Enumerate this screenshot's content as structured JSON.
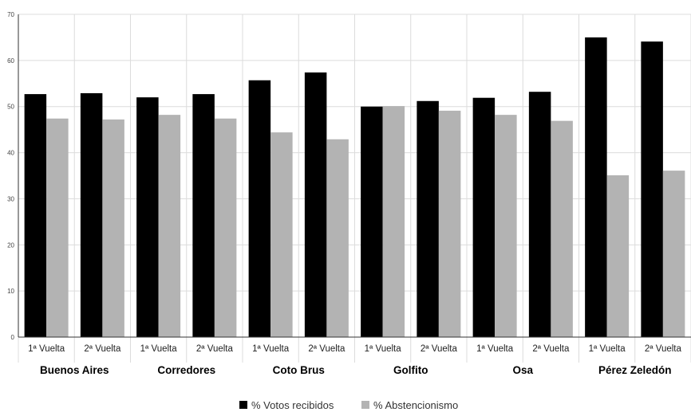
{
  "chart_data": {
    "type": "bar",
    "groups": [
      "Buenos Aires",
      "Corredores",
      "Coto Brus",
      "Golfito",
      "Osa",
      "Pérez Zeledón"
    ],
    "subcategories": [
      "1ª Vuelta",
      "2ª Vuelta"
    ],
    "series": [
      {
        "name": "% Votos recibidos",
        "color": "#000000",
        "values": [
          [
            52.7,
            52.9
          ],
          [
            52.0,
            52.7
          ],
          [
            55.7,
            57.4
          ],
          [
            50.0,
            51.2
          ],
          [
            51.9,
            53.2
          ],
          [
            65.0,
            64.1
          ]
        ]
      },
      {
        "name": "% Abstencionismo",
        "color": "#b3b3b3",
        "values": [
          [
            47.4,
            47.2
          ],
          [
            48.2,
            47.4
          ],
          [
            44.4,
            42.9
          ],
          [
            50.1,
            49.1
          ],
          [
            48.2,
            46.9
          ],
          [
            35.1,
            36.1
          ]
        ]
      }
    ],
    "yticks": [
      0,
      10,
      20,
      30,
      40,
      50,
      60,
      70
    ],
    "ylim": [
      0,
      70
    ],
    "grid": true,
    "legend_position": "bottom"
  }
}
